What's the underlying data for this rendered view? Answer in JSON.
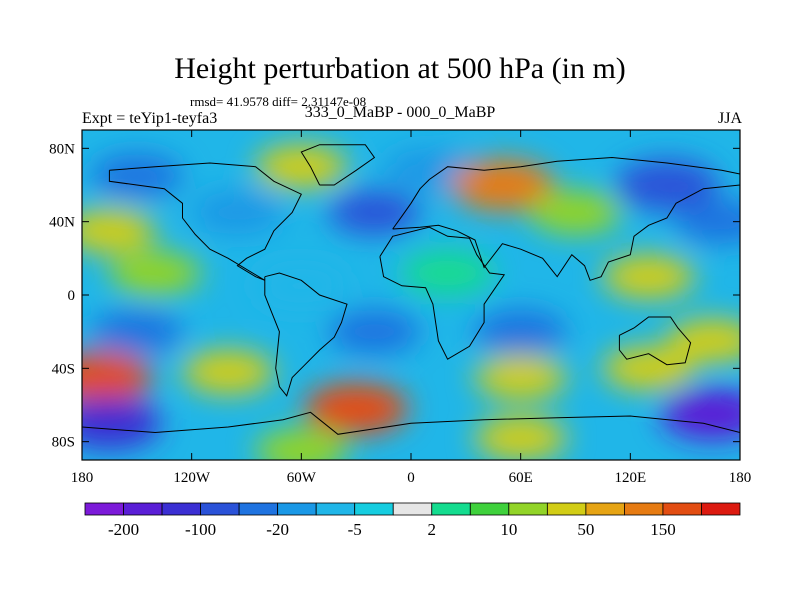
{
  "title": "Height perturbation at 500 hPa (in m)",
  "stats_line": "rmsd= 41.9578 diff= 2.31147e-08",
  "left_label": "Expt = teYip1-teyfa3",
  "center_label": "333_0_MaBP - 000_0_MaBP",
  "right_label": "JJA",
  "colors": {
    "land_outline": "#000000",
    "frame": "#000000"
  },
  "chart_data": {
    "type": "heatmap",
    "projection": "cylindrical equidistant",
    "xlim": [
      -180,
      180
    ],
    "ylim": [
      -90,
      90
    ],
    "x_ticks": [
      {
        "value": -180,
        "label": "180"
      },
      {
        "value": -120,
        "label": "120W"
      },
      {
        "value": -60,
        "label": "60W"
      },
      {
        "value": 0,
        "label": "0"
      },
      {
        "value": 60,
        "label": "60E"
      },
      {
        "value": 120,
        "label": "120E"
      },
      {
        "value": 180,
        "label": "180"
      }
    ],
    "y_ticks": [
      {
        "value": 80,
        "label": "80N"
      },
      {
        "value": 40,
        "label": "40N"
      },
      {
        "value": 0,
        "label": "0"
      },
      {
        "value": -40,
        "label": "40S"
      },
      {
        "value": -80,
        "label": "80S"
      }
    ],
    "colorbar": {
      "levels": [
        -200,
        -150,
        -100,
        -50,
        -20,
        -10,
        -5,
        -2,
        2,
        5,
        10,
        20,
        50,
        100,
        150,
        200
      ],
      "colors": [
        "#7c1ad9",
        "#5a1ed6",
        "#3b2fd3",
        "#2a52d8",
        "#1f73e0",
        "#1a98e6",
        "#20b6e8",
        "#16cde0",
        "#e6e6e6",
        "#14dc8f",
        "#3fd13c",
        "#92d428",
        "#d2cd16",
        "#e6a414",
        "#e67b12",
        "#e24d12",
        "#dc1a10"
      ],
      "labels": [
        {
          "after_level": -200,
          "text": "-200"
        },
        {
          "after_level": -100,
          "text": "-100"
        },
        {
          "after_level": -20,
          "text": "-20"
        },
        {
          "after_level": -5,
          "text": "-5"
        },
        {
          "after_level": 2,
          "text": "2"
        },
        {
          "after_level": 10,
          "text": "10"
        },
        {
          "after_level": 50,
          "text": "50"
        },
        {
          "after_level": 150,
          "text": "150"
        }
      ]
    },
    "field_features": [
      {
        "lon": -150,
        "lat": 65,
        "value": -40
      },
      {
        "lon": -60,
        "lat": 70,
        "value": 20
      },
      {
        "lon": 10,
        "lat": 68,
        "value": -20
      },
      {
        "lon": 50,
        "lat": 60,
        "value": 100
      },
      {
        "lon": 140,
        "lat": 60,
        "value": -100
      },
      {
        "lon": -165,
        "lat": 35,
        "value": 30
      },
      {
        "lon": -95,
        "lat": 45,
        "value": -20
      },
      {
        "lon": -20,
        "lat": 45,
        "value": -60
      },
      {
        "lon": 90,
        "lat": 45,
        "value": 15
      },
      {
        "lon": 170,
        "lat": 40,
        "value": -30
      },
      {
        "lon": -140,
        "lat": 12,
        "value": 15
      },
      {
        "lon": -60,
        "lat": 5,
        "value": -10
      },
      {
        "lon": 20,
        "lat": 12,
        "value": 3
      },
      {
        "lon": 130,
        "lat": 10,
        "value": 30
      },
      {
        "lon": -150,
        "lat": -20,
        "value": -40
      },
      {
        "lon": -20,
        "lat": -20,
        "value": -50
      },
      {
        "lon": 60,
        "lat": -20,
        "value": -40
      },
      {
        "lon": 165,
        "lat": -25,
        "value": 20
      },
      {
        "lon": -170,
        "lat": -45,
        "value": 150
      },
      {
        "lon": -100,
        "lat": -42,
        "value": 40
      },
      {
        "lon": 60,
        "lat": -45,
        "value": 40
      },
      {
        "lon": 130,
        "lat": -40,
        "value": 20
      },
      {
        "lon": -30,
        "lat": -62,
        "value": 160
      },
      {
        "lon": -165,
        "lat": -70,
        "value": -150
      },
      {
        "lon": 165,
        "lat": -65,
        "value": -180
      },
      {
        "lon": 60,
        "lat": -78,
        "value": 20
      },
      {
        "lon": -60,
        "lat": -85,
        "value": 10
      }
    ]
  }
}
